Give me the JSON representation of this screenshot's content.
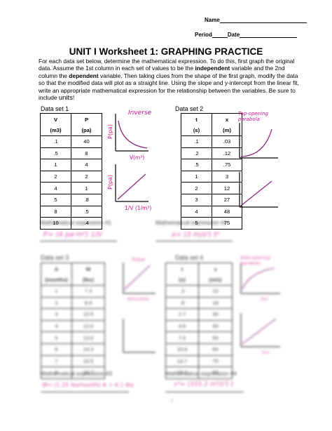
{
  "header": {
    "name_label": "Name",
    "period_label": "Period",
    "date_label": "Date"
  },
  "title": "UNIT I Worksheet 1: GRAPHING PRACTICE",
  "intro": {
    "part1": "For each data set below, determine the mathematical expression.  To do this, first graph the original data.  Assume the 1st column in each set of values to be the ",
    "independent": "independent",
    "part2": " variable and the 2nd column the ",
    "dependent": "dependent",
    "part3": " variable.  Then taking clues from the shape of the first graph, modify the data so that the modified data will plot as a straight line.  Using the slope and y-intercept from the linear fit, write an appropriate mathematical expression for the relationship between the variables.  Be sure to include ",
    "units": "units",
    "part4": "!"
  },
  "data_set_1": {
    "label": "Data set  1",
    "headers": [
      "V",
      "P"
    ],
    "units": [
      "(m3)",
      "(pa)"
    ],
    "rows": [
      [
        ".1",
        "40"
      ],
      [
        ".5",
        "8"
      ],
      [
        "1",
        "4"
      ],
      [
        "2",
        "2"
      ],
      [
        "4",
        "1"
      ],
      [
        "5",
        ".8"
      ],
      [
        "8",
        ".5"
      ],
      [
        "10",
        ".4"
      ]
    ],
    "graph1_note": "Inverse",
    "graph1_ylabel": "P(pa)",
    "graph1_xlabel": "V(m³)",
    "graph2_ylabel": "P(pa)",
    "graph2_xlabel": "1/V (1/m³)"
  },
  "data_set_2": {
    "label": "Data set 2",
    "headers": [
      "t",
      "x"
    ],
    "units": [
      "(s)",
      "(m)"
    ],
    "rows": [
      [
        ".1",
        ".03"
      ],
      [
        ".2",
        ".12"
      ],
      [
        ".5",
        ".75"
      ],
      [
        "1",
        "3"
      ],
      [
        "2",
        "12"
      ],
      [
        "3",
        "27"
      ],
      [
        "4",
        "48"
      ],
      [
        "5",
        "75"
      ]
    ],
    "graph1_note": "Top-opening parabola"
  },
  "expression_1": {
    "label": "Mathematical expression #1",
    "answer": "P= (4 pa·m³) 1/V"
  },
  "expression_2": {
    "label": "Mathematical expression #2",
    "answer": "x= (3 m/s²) t²"
  },
  "data_set_3": {
    "label": "Data set  3",
    "headers": [
      "A",
      "W"
    ],
    "units": [
      "(months)",
      "(lbs)"
    ],
    "rows": [
      [
        "1",
        "7.3"
      ],
      [
        "2",
        "9.4"
      ],
      [
        "3",
        "10.5"
      ],
      [
        "4",
        "12.0"
      ],
      [
        "5",
        "13.0"
      ],
      [
        "6",
        "14.3"
      ],
      [
        "7",
        "15.5"
      ],
      [
        "8",
        "16.7"
      ]
    ],
    "graph1_note": "linear",
    "graph1_xlabel": "A(months)"
  },
  "data_set_4": {
    "label": "Data set  4",
    "headers": [
      "t",
      "v"
    ],
    "units": [
      "(s)",
      "(m/s)"
    ],
    "rows": [
      [
        ".3",
        "10"
      ],
      [
        ".8",
        "18"
      ],
      [
        "2.7",
        "30"
      ],
      [
        "4.8",
        "40"
      ],
      [
        "7.5",
        "50"
      ],
      [
        "10.8",
        "60"
      ],
      [
        "14.7",
        "70"
      ],
      [
        "19.2",
        "80"
      ]
    ],
    "graph1_note": "Side-opening parabola",
    "graph1_xlabel": "t(s)",
    "graph2_xlabel": "t(s)"
  },
  "expression_3": {
    "label": "Mathematical expression #3",
    "answer": "W= (1.35 lbs/month) A + 6.1 lbs"
  },
  "expression_4": {
    "label": "Mathematical expression #4",
    "answer": "v²= (333.3 m²/s³) t"
  },
  "page_number": "1"
}
